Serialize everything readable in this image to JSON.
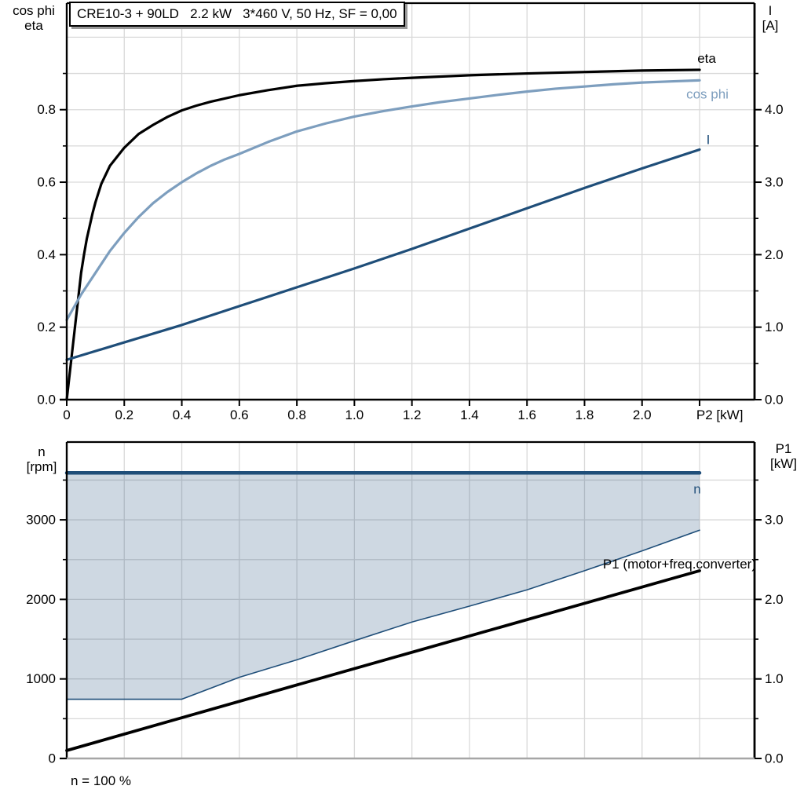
{
  "title": "CRE10-3 + 90LD   2.2 kW   3*460 V, 50 Hz, SF = 0,00",
  "corner_labels": {
    "top_left": [
      "cos phi",
      "eta"
    ],
    "top_right": [
      "I",
      "[A]"
    ],
    "bottom_left": [
      "n",
      "[rpm]"
    ],
    "bottom_right": [
      "P1",
      "[kW]"
    ]
  },
  "footer_note": "n = 100 %",
  "colors": {
    "eta": "#000000",
    "cos_phi": "#7D9EBE",
    "current": "#1F4E79",
    "speed": "#1F4E79",
    "p1": "#000000",
    "grid": "#D9D9D9",
    "axis": "#000000",
    "bottom_axis": "#A6A6A6",
    "band_fill": "rgba(31, 78, 121, 0.22)"
  },
  "chart_data": [
    {
      "id": "top",
      "type": "line",
      "x_axis": {
        "label": "P2 [kW]",
        "label_at": 2.27,
        "min": 0,
        "max": 2.391,
        "tick_values": [
          0,
          0.2,
          0.4,
          0.6,
          0.8,
          1.0,
          1.2,
          1.4,
          1.6,
          1.8,
          2.0,
          2.2
        ],
        "tick_labels": [
          "0",
          "0.2",
          "0.4",
          "0.6",
          "0.8",
          "1.0",
          "1.2",
          "1.4",
          "1.6",
          "1.8",
          "2.0",
          ""
        ],
        "grid_values": [
          0.2,
          0.4,
          0.6,
          0.8,
          1.0,
          1.2,
          1.4,
          1.6,
          1.8,
          2.0,
          2.2
        ]
      },
      "y_left_axis": {
        "label": "cos phi / eta",
        "min": 0,
        "max": 1.094,
        "tick_values": [
          0,
          0.2,
          0.4,
          0.6,
          0.8
        ],
        "tick_labels": [
          "0.0",
          "0.2",
          "0.4",
          "0.6",
          "0.8"
        ],
        "minor_tick_values": [
          0.1,
          0.3,
          0.5,
          0.7,
          0.9
        ],
        "grid_values": [
          0.1,
          0.2,
          0.3,
          0.4,
          0.5,
          0.6,
          0.7,
          0.8,
          0.9,
          1.0
        ]
      },
      "y_right_axis": {
        "label": "I [A]",
        "min": 0,
        "max": 5.47,
        "tick_values": [
          0,
          1,
          2,
          3,
          4
        ],
        "tick_labels": [
          "0.0",
          "1.0",
          "2.0",
          "3.0",
          "4.0"
        ],
        "minor_tick_values": [
          0.5,
          1.5,
          2.5,
          3.5,
          4.5
        ]
      },
      "series": [
        {
          "name": "eta",
          "axis": "left",
          "color_key": "eta",
          "width": 3.2,
          "label": {
            "dx": 9,
            "dy": -9,
            "anchor": "middle"
          },
          "points": [
            [
              0,
              0
            ],
            [
              0.01,
              0.07
            ],
            [
              0.02,
              0.14
            ],
            [
              0.03,
              0.21
            ],
            [
              0.04,
              0.28
            ],
            [
              0.05,
              0.35
            ],
            [
              0.06,
              0.4
            ],
            [
              0.07,
              0.445
            ],
            [
              0.08,
              0.48
            ],
            [
              0.09,
              0.515
            ],
            [
              0.1,
              0.545
            ],
            [
              0.12,
              0.595
            ],
            [
              0.15,
              0.645
            ],
            [
              0.18,
              0.675
            ],
            [
              0.2,
              0.695
            ],
            [
              0.25,
              0.733
            ],
            [
              0.3,
              0.758
            ],
            [
              0.35,
              0.78
            ],
            [
              0.4,
              0.798
            ],
            [
              0.45,
              0.811
            ],
            [
              0.5,
              0.822
            ],
            [
              0.6,
              0.84
            ],
            [
              0.7,
              0.854
            ],
            [
              0.8,
              0.866
            ],
            [
              0.9,
              0.873
            ],
            [
              1.0,
              0.879
            ],
            [
              1.1,
              0.884
            ],
            [
              1.2,
              0.888
            ],
            [
              1.4,
              0.895
            ],
            [
              1.6,
              0.9
            ],
            [
              1.8,
              0.904
            ],
            [
              2.0,
              0.908
            ],
            [
              2.2,
              0.91
            ]
          ]
        },
        {
          "name": "cos phi",
          "axis": "left",
          "color_key": "cos_phi",
          "width": 3.2,
          "label": {
            "dx": 10,
            "dy": 23,
            "anchor": "middle"
          },
          "points": [
            [
              0,
              0.22
            ],
            [
              0.02,
              0.248
            ],
            [
              0.05,
              0.29
            ],
            [
              0.08,
              0.326
            ],
            [
              0.1,
              0.35
            ],
            [
              0.13,
              0.386
            ],
            [
              0.15,
              0.41
            ],
            [
              0.2,
              0.46
            ],
            [
              0.25,
              0.504
            ],
            [
              0.3,
              0.542
            ],
            [
              0.35,
              0.573
            ],
            [
              0.4,
              0.6
            ],
            [
              0.45,
              0.624
            ],
            [
              0.5,
              0.645
            ],
            [
              0.55,
              0.663
            ],
            [
              0.6,
              0.678
            ],
            [
              0.7,
              0.711
            ],
            [
              0.8,
              0.74
            ],
            [
              0.9,
              0.762
            ],
            [
              1.0,
              0.781
            ],
            [
              1.1,
              0.796
            ],
            [
              1.2,
              0.809
            ],
            [
              1.3,
              0.821
            ],
            [
              1.4,
              0.831
            ],
            [
              1.5,
              0.841
            ],
            [
              1.6,
              0.85
            ],
            [
              1.7,
              0.858
            ],
            [
              1.8,
              0.864
            ],
            [
              1.9,
              0.87
            ],
            [
              2.0,
              0.875
            ],
            [
              2.1,
              0.878
            ],
            [
              2.2,
              0.881
            ]
          ]
        },
        {
          "name": "I",
          "axis": "right",
          "color_key": "current",
          "width": 3.2,
          "label": {
            "dx": 11,
            "dy": -7,
            "anchor": "middle"
          },
          "points": [
            [
              0,
              0.55
            ],
            [
              0.2,
              0.79
            ],
            [
              0.4,
              1.03
            ],
            [
              0.6,
              1.29
            ],
            [
              0.8,
              1.55
            ],
            [
              1.0,
              1.81
            ],
            [
              1.2,
              2.08
            ],
            [
              1.4,
              2.36
            ],
            [
              1.6,
              2.64
            ],
            [
              1.8,
              2.92
            ],
            [
              2.0,
              3.19
            ],
            [
              2.2,
              3.45
            ]
          ]
        }
      ]
    },
    {
      "id": "bottom",
      "type": "line-area",
      "x_axis": {
        "label": "",
        "min": 0,
        "max": 2.391,
        "tick_values": [],
        "tick_labels": [],
        "grid_values": [
          0.2,
          0.4,
          0.6,
          0.8,
          1.0,
          1.2,
          1.4,
          1.6,
          1.8,
          2.0,
          2.2
        ]
      },
      "y_left_axis": {
        "label": "n [rpm]",
        "min": 0,
        "max": 3978,
        "tick_values": [
          0,
          1000,
          2000,
          3000
        ],
        "tick_labels": [
          "0",
          "1000",
          "2000",
          "3000"
        ],
        "minor_tick_values": [
          500,
          1500,
          2500,
          3500
        ],
        "grid_values": [
          500,
          1000,
          1500,
          2000,
          2500,
          3000,
          3500
        ]
      },
      "y_right_axis": {
        "label": "P1 [kW]",
        "min": 0,
        "max": 3.978,
        "tick_values": [
          0,
          1,
          2,
          3
        ],
        "tick_labels": [
          "0.0",
          "1.0",
          "2.0",
          "3.0"
        ],
        "minor_tick_values": [
          0.5,
          1.5,
          2.5,
          3.5
        ]
      },
      "band": {
        "upper": "n",
        "lower": "n min",
        "fill_key": "band_fill"
      },
      "series": [
        {
          "name": "n min",
          "axis": "left",
          "color_key": "speed",
          "width": 1.6,
          "label": null,
          "points": [
            [
              0,
              745
            ],
            [
              0.4,
              745
            ],
            [
              0.6,
              1020
            ],
            [
              0.8,
              1240
            ],
            [
              1.0,
              1480
            ],
            [
              1.2,
              1715
            ],
            [
              1.4,
              1915
            ],
            [
              1.6,
              2120
            ],
            [
              1.8,
              2360
            ],
            [
              2.0,
              2610
            ],
            [
              2.2,
              2870
            ]
          ]
        },
        {
          "name": "n",
          "axis": "left",
          "color_key": "speed",
          "width": 4.5,
          "label": {
            "dx": -3,
            "dy": 26,
            "anchor": "middle"
          },
          "points": [
            [
              0,
              3590
            ],
            [
              2.2,
              3590
            ]
          ]
        },
        {
          "name": "P1 (motor+freq.converter)",
          "axis": "right",
          "color_key": "p1",
          "width": 3.8,
          "label": {
            "dx": 72,
            "dy": -3,
            "anchor": "end"
          },
          "points": [
            [
              0,
              0.1
            ],
            [
              1.0,
              1.13
            ],
            [
              2.2,
              2.36
            ]
          ]
        }
      ]
    }
  ]
}
